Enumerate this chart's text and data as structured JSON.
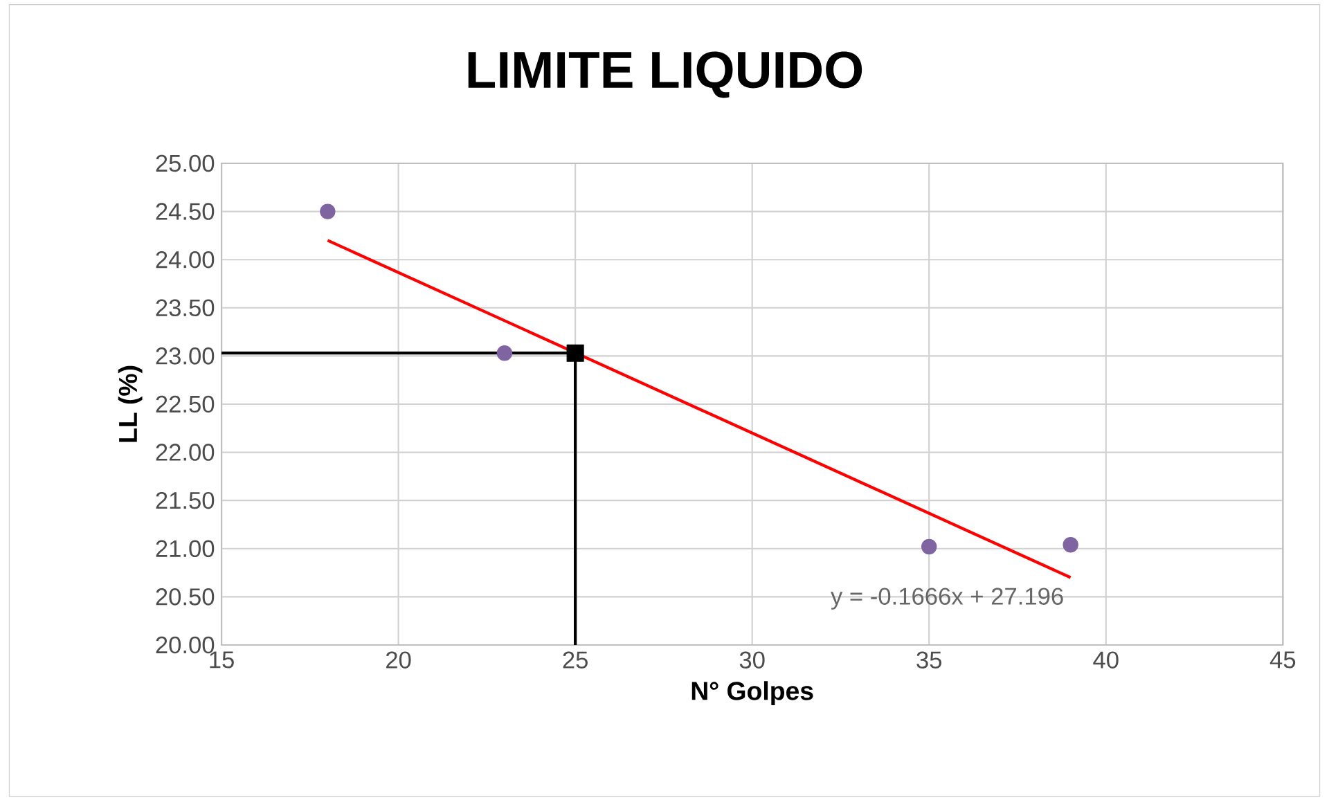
{
  "chart_data": {
    "type": "scatter",
    "title": "LIMITE LIQUIDO",
    "xlabel": "N° Golpes",
    "ylabel": "LL (%)",
    "xlim": [
      15,
      45
    ],
    "xticks": [
      15,
      20,
      25,
      30,
      35,
      40,
      45
    ],
    "ylim": [
      20,
      25
    ],
    "yticks": [
      {
        "value": 20,
        "label": "20.00"
      },
      {
        "value": 20.5,
        "label": "20.50"
      },
      {
        "value": 21,
        "label": "21.00"
      },
      {
        "value": 21.5,
        "label": "21.50"
      },
      {
        "value": 22,
        "label": "22.00"
      },
      {
        "value": 22.5,
        "label": "22.50"
      },
      {
        "value": 23,
        "label": "23.00"
      },
      {
        "value": 23.5,
        "label": "23.50"
      },
      {
        "value": 24,
        "label": "24.00"
      },
      {
        "value": 24.5,
        "label": "24.50"
      },
      {
        "value": 25,
        "label": "25.00"
      }
    ],
    "grid": true,
    "series": [
      {
        "color": "#8064a2",
        "marker": "circle",
        "x": [
          18,
          23,
          35,
          39
        ],
        "values": [
          24.5,
          23.03,
          21.02,
          21.04
        ]
      },
      {
        "type": "line",
        "color": "#ff0000",
        "marker": "none",
        "x": [
          18,
          39
        ],
        "values": [
          24.2,
          20.7
        ]
      },
      {
        "type": "line",
        "color": "#000000",
        "marker": "none",
        "x": [
          15,
          25,
          25
        ],
        "values": [
          23.03,
          23.03,
          20
        ]
      },
      {
        "color": "#000000",
        "marker": "square",
        "x": [
          25
        ],
        "values": [
          23.03
        ]
      }
    ],
    "annotations": [
      "y = -0.1666x + 27.196"
    ]
  }
}
